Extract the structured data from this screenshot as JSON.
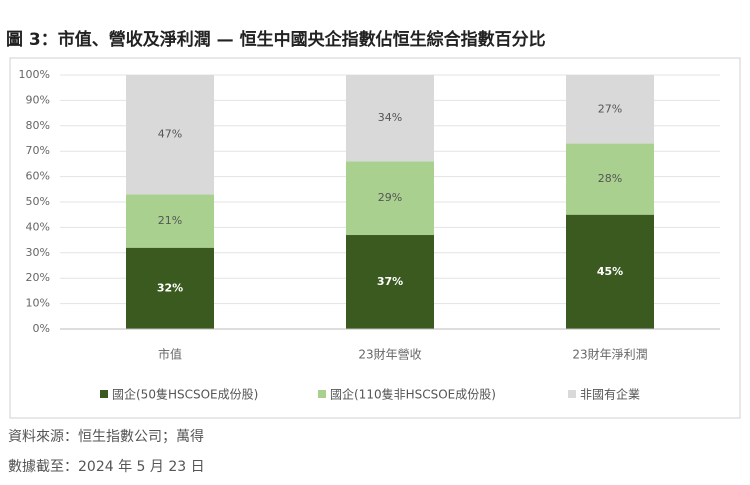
{
  "chart_data": {
    "type": "stacked_bar",
    "title": "圖 3：市值、營收及淨利潤 — 恒生中國央企指數佔恒生綜合指數百分比",
    "categories": [
      "市值",
      "23財年營收",
      "23財年淨利潤"
    ],
    "series": [
      {
        "name": "國企(50隻HSCSOE成份股)",
        "color": "#3b5a1f",
        "values": [
          32,
          37,
          45
        ],
        "value_labels": [
          "32%",
          "37%",
          "45%"
        ]
      },
      {
        "name": "國企(110隻非HSCSOE成份股)",
        "color": "#a9d08e",
        "values": [
          21,
          29,
          28
        ],
        "value_labels": [
          "21%",
          "29%",
          "28%"
        ]
      },
      {
        "name": "非國有企業",
        "color": "#d9d9d9",
        "values": [
          47,
          34,
          27
        ],
        "value_labels": [
          "47%",
          "34%",
          "27%"
        ]
      }
    ],
    "ylim": [
      0,
      100
    ],
    "yticks": [
      {
        "value": 0,
        "label": "0%"
      },
      {
        "value": 10,
        "label": "10%"
      },
      {
        "value": 20,
        "label": "20%"
      },
      {
        "value": 30,
        "label": "30%"
      },
      {
        "value": 40,
        "label": "40%"
      },
      {
        "value": 50,
        "label": "50%"
      },
      {
        "value": 60,
        "label": "60%"
      },
      {
        "value": 70,
        "label": "70%"
      },
      {
        "value": 80,
        "label": "80%"
      },
      {
        "value": 90,
        "label": "90%"
      },
      {
        "value": 100,
        "label": "100%"
      }
    ],
    "grid": true,
    "legend": "bottom",
    "notes": [
      "資料來源：恒生指數公司；萬得",
      "數據截至：2024 年 5 月 23 日"
    ]
  }
}
